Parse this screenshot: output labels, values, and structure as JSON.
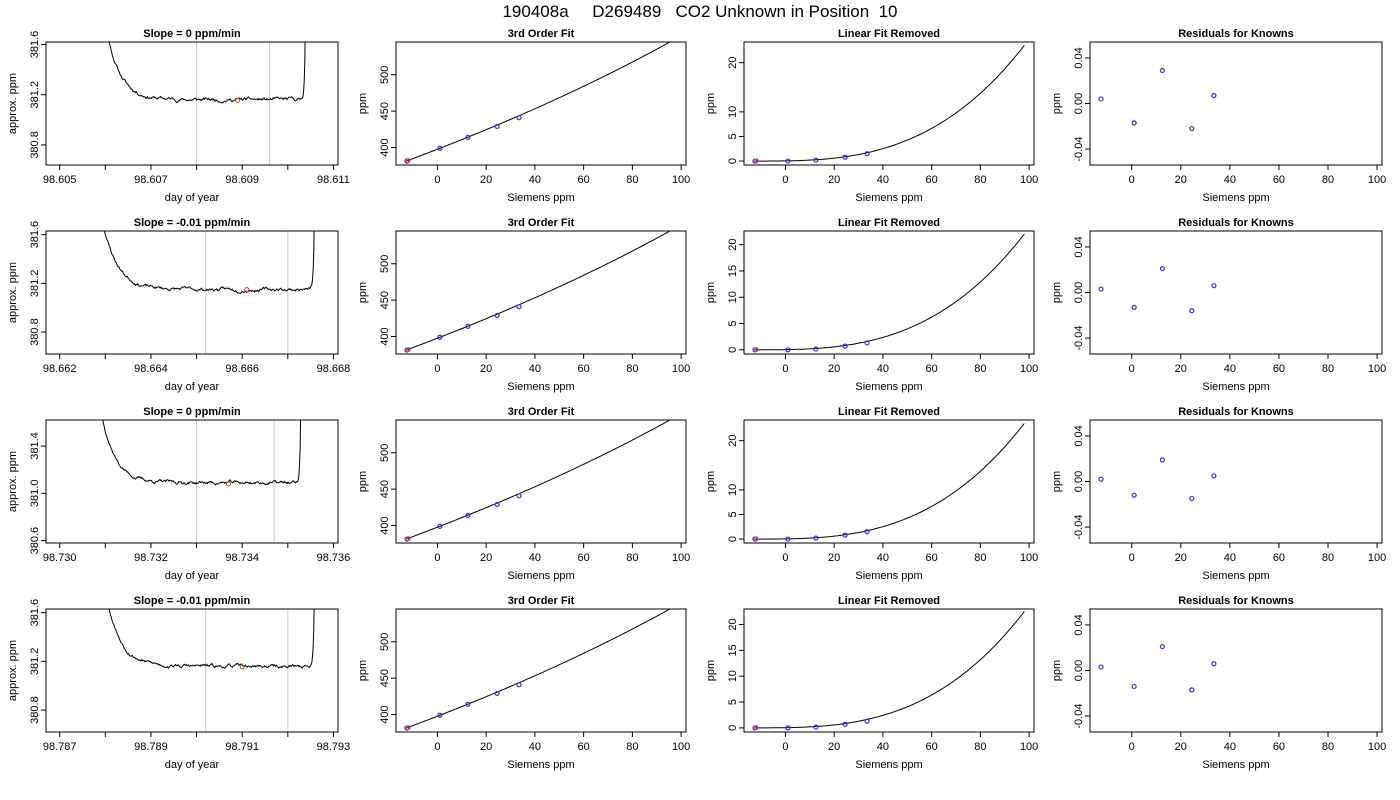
{
  "page_title": "190408a     D269489   CO2 Unknown in Position  10",
  "colors": {
    "axis": "#000000",
    "curve": "#000000",
    "vline": "#c8c8c8",
    "known": "#3b2bdc",
    "sample": "#e0483a"
  },
  "chart_data": [
    {
      "type": "line",
      "row": 0,
      "col": 0,
      "title": "Slope =  0  ppm/min",
      "xlabel": "day of year",
      "ylabel": "approx. ppm",
      "xlim": [
        98.6047,
        98.6111
      ],
      "ylim": [
        380.64,
        381.62
      ],
      "xticks": [
        98.605,
        98.606,
        98.607,
        98.608,
        98.609,
        98.61,
        98.611
      ],
      "xtick_labels": [
        "98.605",
        "",
        "98.607",
        "",
        "98.609",
        "",
        "98.611"
      ],
      "yticks": [
        380.8,
        381.2,
        381.6
      ],
      "ytick_labels": [
        "380.8",
        "381.2",
        "381.6"
      ],
      "vlines": [
        98.608,
        98.6096
      ],
      "t_start": 98.6058,
      "t_end": 98.6104,
      "plateau": 381.16,
      "seed": 11,
      "marker": {
        "x": 98.6089,
        "y": 381.155
      }
    },
    {
      "type": "scatter",
      "row": 0,
      "col": 1,
      "title": "3rd Order Fit",
      "xlabel": "Siemens ppm",
      "ylabel": "ppm",
      "xlim": [
        -17,
        102
      ],
      "ylim": [
        376,
        545
      ],
      "xticks": [
        0,
        20,
        40,
        60,
        80,
        100
      ],
      "yticks": [
        400,
        450,
        500
      ],
      "points": [
        {
          "x": -12.5,
          "y": 381.5
        },
        {
          "x": 1,
          "y": 399
        },
        {
          "x": 12.5,
          "y": 414
        },
        {
          "x": 24.5,
          "y": 429
        },
        {
          "x": 33.5,
          "y": 441
        }
      ],
      "sample_points": [
        {
          "x": -12,
          "y": 382
        }
      ],
      "curve": {
        "type": "poly",
        "x": [
          -12.5,
          98
        ],
        "coeffs": [
          397.7,
          1.3,
          0.00201,
          5.7e-06
        ]
      }
    },
    {
      "type": "scatter",
      "row": 0,
      "col": 2,
      "title": "Linear Fit Removed",
      "xlabel": "Siemens ppm",
      "ylabel": "ppm",
      "xlim": [
        -17,
        102
      ],
      "ylim": [
        -0.8,
        24.2
      ],
      "xticks": [
        0,
        20,
        40,
        60,
        80,
        100
      ],
      "yticks": [
        0,
        5,
        10,
        20
      ],
      "points": [
        {
          "x": -12.5,
          "y": 0
        },
        {
          "x": 1,
          "y": 0
        },
        {
          "x": 12.5,
          "y": 0.2
        },
        {
          "x": 24.5,
          "y": 0.8
        },
        {
          "x": 33.5,
          "y": 1.5
        }
      ],
      "sample_points": [
        {
          "x": -12,
          "y": 0.05
        }
      ],
      "curve": {
        "type": "power",
        "x": [
          -12.5,
          98
        ],
        "x0": -12.5,
        "exp": 3,
        "peak": 23.5
      }
    },
    {
      "type": "scatter",
      "row": 0,
      "col": 3,
      "title": "Residuals for Knowns",
      "xlabel": "Siemens ppm",
      "ylabel": "ppm",
      "xlim": [
        -17,
        102
      ],
      "ylim": [
        -0.054,
        0.054
      ],
      "xticks": [
        0,
        20,
        40,
        60,
        80,
        100
      ],
      "yticks": [
        -0.04,
        0,
        0.04
      ],
      "ytick_labels": [
        "-0.04",
        "0.00",
        "0.04"
      ],
      "points": [
        {
          "x": -12.5,
          "y": 0.004
        },
        {
          "x": 1,
          "y": -0.017
        },
        {
          "x": 12.5,
          "y": 0.029
        },
        {
          "x": 24.5,
          "y": -0.022
        },
        {
          "x": 33.5,
          "y": 0.007
        }
      ]
    },
    {
      "type": "line",
      "row": 1,
      "col": 0,
      "title": "Slope =  -0.01  ppm/min",
      "xlabel": "day of year",
      "ylabel": "approx. ppm",
      "xlim": [
        98.6617,
        98.6681
      ],
      "ylim": [
        380.62,
        381.63
      ],
      "xticks": [
        98.662,
        98.663,
        98.664,
        98.665,
        98.666,
        98.667,
        98.668
      ],
      "xtick_labels": [
        "98.662",
        "",
        "98.664",
        "",
        "98.666",
        "",
        "98.668"
      ],
      "yticks": [
        380.8,
        381.2,
        381.6
      ],
      "ytick_labels": [
        "380.8",
        "381.2",
        "381.6"
      ],
      "vlines": [
        98.6652,
        98.667
      ],
      "t_start": 98.6627,
      "t_end": 98.6676,
      "plateau": 381.15,
      "seed": 23,
      "marker": {
        "x": 98.6661,
        "y": 381.15
      }
    },
    {
      "type": "scatter",
      "row": 1,
      "col": 1,
      "title": "3rd Order Fit",
      "xlabel": "Siemens ppm",
      "ylabel": "ppm",
      "xlim": [
        -17,
        102
      ],
      "ylim": [
        376,
        545
      ],
      "xticks": [
        0,
        20,
        40,
        60,
        80,
        100
      ],
      "yticks": [
        400,
        450,
        500
      ],
      "points": [
        {
          "x": -12.5,
          "y": 381.5
        },
        {
          "x": 1,
          "y": 399
        },
        {
          "x": 12.5,
          "y": 414
        },
        {
          "x": 24.5,
          "y": 429
        },
        {
          "x": 33.5,
          "y": 441
        }
      ],
      "sample_points": [
        {
          "x": -12,
          "y": 382
        }
      ],
      "curve": {
        "type": "poly",
        "x": [
          -12.5,
          98
        ],
        "coeffs": [
          397.7,
          1.3,
          0.00201,
          5.7e-06
        ]
      }
    },
    {
      "type": "scatter",
      "row": 1,
      "col": 2,
      "title": "Linear Fit Removed",
      "xlabel": "Siemens ppm",
      "ylabel": "ppm",
      "xlim": [
        -17,
        102
      ],
      "ylim": [
        -0.8,
        22.6
      ],
      "xticks": [
        0,
        20,
        40,
        60,
        80,
        100
      ],
      "yticks": [
        0,
        5,
        10,
        15,
        20
      ],
      "points": [
        {
          "x": -12.5,
          "y": 0
        },
        {
          "x": 1,
          "y": 0
        },
        {
          "x": 12.5,
          "y": 0.15
        },
        {
          "x": 24.5,
          "y": 0.7
        },
        {
          "x": 33.5,
          "y": 1.3
        }
      ],
      "sample_points": [
        {
          "x": -12,
          "y": 0.05
        }
      ],
      "curve": {
        "type": "power",
        "x": [
          -12.5,
          98
        ],
        "x0": -12.5,
        "exp": 3,
        "peak": 22
      }
    },
    {
      "type": "scatter",
      "row": 1,
      "col": 3,
      "title": "Residuals for Knowns",
      "xlabel": "Siemens ppm",
      "ylabel": "ppm",
      "xlim": [
        -17,
        102
      ],
      "ylim": [
        -0.054,
        0.054
      ],
      "xticks": [
        0,
        20,
        40,
        60,
        80,
        100
      ],
      "yticks": [
        -0.04,
        0,
        0.04
      ],
      "ytick_labels": [
        "-0.04",
        "0.00",
        "0.04"
      ],
      "points": [
        {
          "x": -12.5,
          "y": 0.003
        },
        {
          "x": 1,
          "y": -0.013
        },
        {
          "x": 12.5,
          "y": 0.021
        },
        {
          "x": 24.5,
          "y": -0.016
        },
        {
          "x": 33.5,
          "y": 0.006
        }
      ]
    },
    {
      "type": "line",
      "row": 2,
      "col": 0,
      "title": "Slope =  0  ppm/min",
      "xlabel": "day of year",
      "ylabel": "approx. ppm",
      "xlim": [
        98.7297,
        98.7361
      ],
      "ylim": [
        380.58,
        381.62
      ],
      "xticks": [
        98.73,
        98.731,
        98.732,
        98.733,
        98.734,
        98.735,
        98.736
      ],
      "xtick_labels": [
        "98.730",
        "",
        "98.732",
        "",
        "98.734",
        "",
        "98.736"
      ],
      "yticks": [
        380.6,
        381.0,
        381.4
      ],
      "ytick_labels": [
        "380.6",
        "381.0",
        "381.4"
      ],
      "vlines": [
        98.733,
        98.7347
      ],
      "t_start": 98.7307,
      "t_end": 98.7353,
      "plateau": 381.09,
      "seed": 37,
      "marker": {
        "x": 98.7337,
        "y": 381.08
      }
    },
    {
      "type": "scatter",
      "row": 2,
      "col": 1,
      "title": "3rd Order Fit",
      "xlabel": "Siemens ppm",
      "ylabel": "ppm",
      "xlim": [
        -17,
        102
      ],
      "ylim": [
        376,
        545
      ],
      "xticks": [
        0,
        20,
        40,
        60,
        80,
        100
      ],
      "yticks": [
        400,
        450,
        500
      ],
      "points": [
        {
          "x": -12.5,
          "y": 381.5
        },
        {
          "x": 1,
          "y": 399
        },
        {
          "x": 12.5,
          "y": 414
        },
        {
          "x": 24.5,
          "y": 429
        },
        {
          "x": 33.5,
          "y": 441
        }
      ],
      "sample_points": [
        {
          "x": -12,
          "y": 382
        }
      ],
      "curve": {
        "type": "poly",
        "x": [
          -12.5,
          98
        ],
        "coeffs": [
          397.7,
          1.3,
          0.00201,
          5.7e-06
        ]
      }
    },
    {
      "type": "scatter",
      "row": 2,
      "col": 2,
      "title": "Linear Fit Removed",
      "xlabel": "Siemens ppm",
      "ylabel": "ppm",
      "xlim": [
        -17,
        102
      ],
      "ylim": [
        -0.8,
        24.2
      ],
      "xticks": [
        0,
        20,
        40,
        60,
        80,
        100
      ],
      "yticks": [
        0,
        5,
        10,
        20
      ],
      "points": [
        {
          "x": -12.5,
          "y": 0
        },
        {
          "x": 1,
          "y": 0
        },
        {
          "x": 12.5,
          "y": 0.2
        },
        {
          "x": 24.5,
          "y": 0.8
        },
        {
          "x": 33.5,
          "y": 1.5
        }
      ],
      "sample_points": [
        {
          "x": -12,
          "y": 0.05
        }
      ],
      "curve": {
        "type": "power",
        "x": [
          -12.5,
          98
        ],
        "x0": -12.5,
        "exp": 3,
        "peak": 23.5
      }
    },
    {
      "type": "scatter",
      "row": 2,
      "col": 3,
      "title": "Residuals for Knowns",
      "xlabel": "Siemens ppm",
      "ylabel": "ppm",
      "xlim": [
        -17,
        102
      ],
      "ylim": [
        -0.054,
        0.054
      ],
      "xticks": [
        0,
        20,
        40,
        60,
        80,
        100
      ],
      "yticks": [
        -0.04,
        0,
        0.04
      ],
      "ytick_labels": [
        "-0.04",
        "0.00",
        "0.04"
      ],
      "points": [
        {
          "x": -12.5,
          "y": 0.002
        },
        {
          "x": 1,
          "y": -0.012
        },
        {
          "x": 12.5,
          "y": 0.019
        },
        {
          "x": 24.5,
          "y": -0.015
        },
        {
          "x": 33.5,
          "y": 0.005
        }
      ]
    },
    {
      "type": "line",
      "row": 3,
      "col": 0,
      "title": "Slope =  -0.01  ppm/min",
      "xlabel": "day of year",
      "ylabel": "approx. ppm",
      "xlim": [
        98.7867,
        98.7931
      ],
      "ylim": [
        380.62,
        381.63
      ],
      "xticks": [
        98.787,
        98.788,
        98.789,
        98.79,
        98.791,
        98.792,
        98.793
      ],
      "xtick_labels": [
        "98.787",
        "",
        "98.789",
        "",
        "98.791",
        "",
        "98.793"
      ],
      "yticks": [
        380.8,
        381.2,
        381.6
      ],
      "ytick_labels": [
        "380.8",
        "381.2",
        "381.6"
      ],
      "vlines": [
        98.7902,
        98.792
      ],
      "t_start": 98.7878,
      "t_end": 98.7926,
      "plateau": 381.16,
      "seed": 53,
      "marker": {
        "x": 98.791,
        "y": 381.155
      }
    },
    {
      "type": "scatter",
      "row": 3,
      "col": 1,
      "title": "3rd Order Fit",
      "xlabel": "Siemens ppm",
      "ylabel": "ppm",
      "xlim": [
        -17,
        102
      ],
      "ylim": [
        376,
        545
      ],
      "xticks": [
        0,
        20,
        40,
        60,
        80,
        100
      ],
      "yticks": [
        400,
        450,
        500
      ],
      "points": [
        {
          "x": -12.5,
          "y": 381.5
        },
        {
          "x": 1,
          "y": 399
        },
        {
          "x": 12.5,
          "y": 414
        },
        {
          "x": 24.5,
          "y": 429
        },
        {
          "x": 33.5,
          "y": 441
        }
      ],
      "sample_points": [
        {
          "x": -12,
          "y": 382
        }
      ],
      "curve": {
        "type": "poly",
        "x": [
          -12.5,
          98
        ],
        "coeffs": [
          397.7,
          1.3,
          0.00201,
          5.7e-06
        ]
      }
    },
    {
      "type": "scatter",
      "row": 3,
      "col": 2,
      "title": "Linear Fit Removed",
      "xlabel": "Siemens ppm",
      "ylabel": "ppm",
      "xlim": [
        -17,
        102
      ],
      "ylim": [
        -0.8,
        23.0
      ],
      "xticks": [
        0,
        20,
        40,
        60,
        80,
        100
      ],
      "yticks": [
        0,
        5,
        10,
        15,
        20
      ],
      "points": [
        {
          "x": -12.5,
          "y": 0
        },
        {
          "x": 1,
          "y": 0
        },
        {
          "x": 12.5,
          "y": 0.15
        },
        {
          "x": 24.5,
          "y": 0.7
        },
        {
          "x": 33.5,
          "y": 1.3
        }
      ],
      "sample_points": [
        {
          "x": -12,
          "y": 0.05
        }
      ],
      "curve": {
        "type": "power",
        "x": [
          -12.5,
          98
        ],
        "x0": -12.5,
        "exp": 3,
        "peak": 22.5
      }
    },
    {
      "type": "scatter",
      "row": 3,
      "col": 3,
      "title": "Residuals for Knowns",
      "xlabel": "Siemens ppm",
      "ylabel": "ppm",
      "xlim": [
        -17,
        102
      ],
      "ylim": [
        -0.054,
        0.054
      ],
      "xticks": [
        0,
        20,
        40,
        60,
        80,
        100
      ],
      "yticks": [
        -0.04,
        0,
        0.04
      ],
      "ytick_labels": [
        "-0.04",
        "0.00",
        "0.04"
      ],
      "points": [
        {
          "x": -12.5,
          "y": 0.003
        },
        {
          "x": 1,
          "y": -0.014
        },
        {
          "x": 12.5,
          "y": 0.021
        },
        {
          "x": 24.5,
          "y": -0.017
        },
        {
          "x": 33.5,
          "y": 0.006
        }
      ]
    }
  ]
}
